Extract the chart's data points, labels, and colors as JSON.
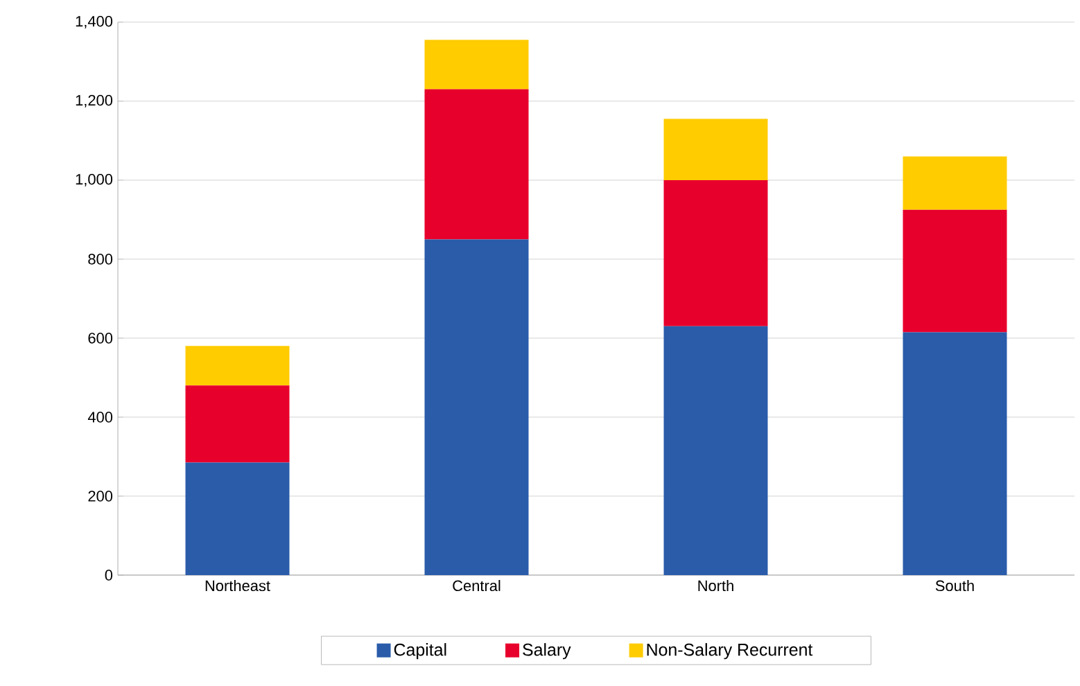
{
  "chart_data": {
    "type": "bar",
    "stacked": true,
    "categories": [
      "Northeast",
      "Central",
      "North",
      "South"
    ],
    "series": [
      {
        "name": "Capital",
        "color": "#2a5caa",
        "values": [
          285,
          850,
          630,
          615
        ]
      },
      {
        "name": "Salary",
        "color": "#e8002c",
        "values": [
          195,
          380,
          370,
          310
        ]
      },
      {
        "name": "Non-Salary Recurrent",
        "color": "#ffcc00",
        "values": [
          100,
          125,
          155,
          135
        ]
      }
    ],
    "ylim": [
      0,
      1400
    ],
    "yticks": [
      0,
      200,
      400,
      600,
      800,
      {
        "value": 1000,
        "label": "1,000"
      },
      {
        "value": 1200,
        "label": "1,200"
      },
      {
        "value": 1400,
        "label": "1,400"
      }
    ],
    "grid": "y",
    "legend": "bottom"
  }
}
